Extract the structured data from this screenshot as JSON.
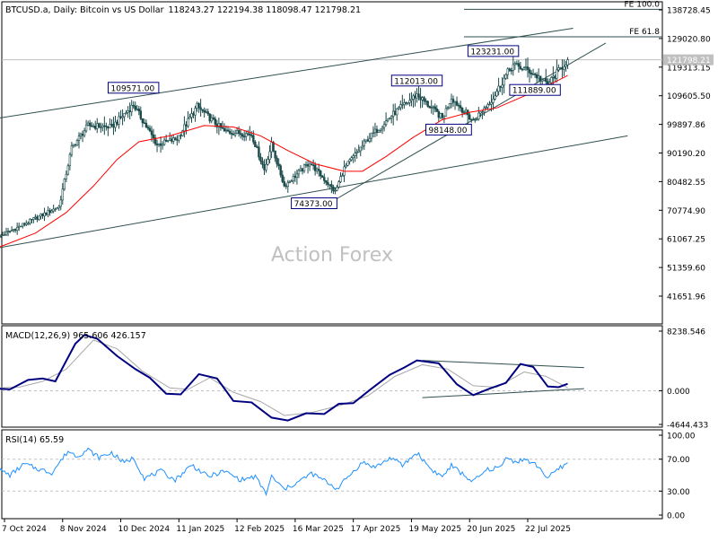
{
  "header": {
    "symbol": "BTCUSD.a, Daily:  Bitcoin vs US Dollar",
    "ohlc": "118243.27 122194.38 118098.47 121798.21"
  },
  "watermark": "Action Forex",
  "colors": {
    "candle": "#1a4a4a",
    "sma": "#ff0000",
    "macd": "#000080",
    "signal": "#a8a8a8",
    "rsi": "#1e90ff",
    "lines": "#2f4f4f",
    "grid": "#c0c0c0"
  },
  "chart_data": [
    {
      "type": "candlestick",
      "title": "BTCUSD.a, Daily:  Bitcoin vs US Dollar",
      "y_ticks": [
        "138728.45",
        "129020.80",
        "119313.15",
        "109605.50",
        "99897.86",
        "90190.20",
        "80482.55",
        "70774.90",
        "61067.25",
        "51359.60",
        "41651.96"
      ],
      "ylim": [
        35000,
        140000
      ],
      "x_ticks": [
        "7 Oct 2024",
        "8 Nov 2024",
        "10 Dec 2024",
        "11 Jan 2025",
        "12 Feb 2025",
        "16 Mar 2025",
        "17 Apr 2025",
        "19 May 2025",
        "20 Jun 2025",
        "22 Jul 2025"
      ],
      "last_price": "121798.21",
      "fibonacci": [
        {
          "label": "FE 100.0",
          "level": 138900
        },
        {
          "label": "FE 61.8",
          "level": 129600
        }
      ],
      "annotations": [
        {
          "label": "109571.00",
          "date": "2024-12-17",
          "price": 109571
        },
        {
          "label": "74373.00",
          "date": "2025-04-07",
          "price": 74373
        },
        {
          "label": "112013.00",
          "date": "2025-05-22",
          "price": 112013
        },
        {
          "label": "98148.00",
          "date": "2025-06-22",
          "price": 98148
        },
        {
          "label": "123231.00",
          "date": "2025-07-14",
          "price": 123231
        },
        {
          "label": "111889.00",
          "date": "2025-08-02",
          "price": 111889
        }
      ],
      "anchors": [
        {
          "date": "2024-10-03",
          "price": 61500
        },
        {
          "date": "2024-11-06",
          "price": 72000
        },
        {
          "date": "2024-11-13",
          "price": 92000
        },
        {
          "date": "2024-11-22",
          "price": 99500
        },
        {
          "date": "2024-12-05",
          "price": 99000
        },
        {
          "date": "2024-12-17",
          "price": 106500
        },
        {
          "date": "2024-12-30",
          "price": 93000
        },
        {
          "date": "2025-01-10",
          "price": 95000
        },
        {
          "date": "2025-01-21",
          "price": 106000
        },
        {
          "date": "2025-02-05",
          "price": 97500
        },
        {
          "date": "2025-02-20",
          "price": 96500
        },
        {
          "date": "2025-02-27",
          "price": 84500
        },
        {
          "date": "2025-03-03",
          "price": 93000
        },
        {
          "date": "2025-03-10",
          "price": 79000
        },
        {
          "date": "2025-03-24",
          "price": 87000
        },
        {
          "date": "2025-04-07",
          "price": 77000
        },
        {
          "date": "2025-04-12",
          "price": 85000
        },
        {
          "date": "2025-04-25",
          "price": 95000
        },
        {
          "date": "2025-05-10",
          "price": 104000
        },
        {
          "date": "2025-05-22",
          "price": 110000
        },
        {
          "date": "2025-06-05",
          "price": 102000
        },
        {
          "date": "2025-06-10",
          "price": 109000
        },
        {
          "date": "2025-06-22",
          "price": 101000
        },
        {
          "date": "2025-07-03",
          "price": 109000
        },
        {
          "date": "2025-07-11",
          "price": 117500
        },
        {
          "date": "2025-07-14",
          "price": 120000
        },
        {
          "date": "2025-07-23",
          "price": 118000
        },
        {
          "date": "2025-08-02",
          "price": 113500
        },
        {
          "date": "2025-08-10",
          "price": 119500
        },
        {
          "date": "2025-08-13",
          "price": 121798
        }
      ],
      "sma": [
        {
          "date": "2024-10-03",
          "price": 58000
        },
        {
          "date": "2024-10-24",
          "price": 63000
        },
        {
          "date": "2024-11-10",
          "price": 70000
        },
        {
          "date": "2024-11-25",
          "price": 79000
        },
        {
          "date": "2024-12-08",
          "price": 88000
        },
        {
          "date": "2024-12-20",
          "price": 94000
        },
        {
          "date": "2025-01-06",
          "price": 96000
        },
        {
          "date": "2025-01-25",
          "price": 99500
        },
        {
          "date": "2025-02-10",
          "price": 99000
        },
        {
          "date": "2025-02-25",
          "price": 96000
        },
        {
          "date": "2025-03-12",
          "price": 91000
        },
        {
          "date": "2025-03-27",
          "price": 86500
        },
        {
          "date": "2025-04-12",
          "price": 84000
        },
        {
          "date": "2025-04-22",
          "price": 84000
        },
        {
          "date": "2025-05-05",
          "price": 89000
        },
        {
          "date": "2025-05-20",
          "price": 95500
        },
        {
          "date": "2025-06-05",
          "price": 101500
        },
        {
          "date": "2025-06-20",
          "price": 104000
        },
        {
          "date": "2025-07-05",
          "price": 105500
        },
        {
          "date": "2025-07-20",
          "price": 109500
        },
        {
          "date": "2025-08-02",
          "price": 113000
        },
        {
          "date": "2025-08-13",
          "price": 116500
        }
      ],
      "trendlines": [
        {
          "from": {
            "date": "2024-09-15",
            "price": 100200
          },
          "to": {
            "date": "2025-08-16",
            "price": 132500
          }
        },
        {
          "from": {
            "date": "2024-09-15",
            "price": 56000
          },
          "to": {
            "date": "2025-09-15",
            "price": 96000
          }
        },
        {
          "from": {
            "date": "2025-04-07",
            "price": 74373
          },
          "to": {
            "date": "2025-09-03",
            "price": 127500
          }
        }
      ]
    },
    {
      "type": "line",
      "title": "MACD(12,26,9) 965.606 426.157",
      "y_ticks": [
        "8238.546",
        "0.000",
        "-4644.433"
      ],
      "ylim": [
        -4800,
        9000
      ],
      "series": [
        {
          "name": "MACD",
          "points": [
            {
              "date": "2024-10-03",
              "value": 300
            },
            {
              "date": "2024-10-10",
              "value": 200
            },
            {
              "date": "2024-10-20",
              "value": 1500
            },
            {
              "date": "2024-10-28",
              "value": 1700
            },
            {
              "date": "2024-11-04",
              "value": 1300
            },
            {
              "date": "2024-11-15",
              "value": 6500
            },
            {
              "date": "2024-11-20",
              "value": 7700
            },
            {
              "date": "2024-11-27",
              "value": 7200
            },
            {
              "date": "2024-12-08",
              "value": 4800
            },
            {
              "date": "2024-12-18",
              "value": 3000
            },
            {
              "date": "2024-12-26",
              "value": 1800
            },
            {
              "date": "2025-01-04",
              "value": -400
            },
            {
              "date": "2025-01-12",
              "value": -500
            },
            {
              "date": "2025-01-22",
              "value": 2300
            },
            {
              "date": "2025-02-01",
              "value": 1700
            },
            {
              "date": "2025-02-10",
              "value": -1400
            },
            {
              "date": "2025-02-20",
              "value": -1600
            },
            {
              "date": "2025-03-03",
              "value": -3700
            },
            {
              "date": "2025-03-12",
              "value": -4100
            },
            {
              "date": "2025-03-22",
              "value": -3100
            },
            {
              "date": "2025-04-01",
              "value": -3200
            },
            {
              "date": "2025-04-09",
              "value": -1800
            },
            {
              "date": "2025-04-17",
              "value": -1700
            },
            {
              "date": "2025-04-26",
              "value": 100
            },
            {
              "date": "2025-05-07",
              "value": 2200
            },
            {
              "date": "2025-05-15",
              "value": 3200
            },
            {
              "date": "2025-05-22",
              "value": 4200
            },
            {
              "date": "2025-06-03",
              "value": 3800
            },
            {
              "date": "2025-06-13",
              "value": 900
            },
            {
              "date": "2025-06-22",
              "value": -600
            },
            {
              "date": "2025-07-01",
              "value": 300
            },
            {
              "date": "2025-07-10",
              "value": 1100
            },
            {
              "date": "2025-07-18",
              "value": 3700
            },
            {
              "date": "2025-07-25",
              "value": 3300
            },
            {
              "date": "2025-08-02",
              "value": 600
            },
            {
              "date": "2025-08-08",
              "value": 500
            },
            {
              "date": "2025-08-13",
              "value": 966
            }
          ]
        },
        {
          "name": "Signal",
          "points": [
            {
              "date": "2024-10-03",
              "value": 400
            },
            {
              "date": "2024-10-15",
              "value": 500
            },
            {
              "date": "2024-10-28",
              "value": 1300
            },
            {
              "date": "2024-11-10",
              "value": 3000
            },
            {
              "date": "2024-11-25",
              "value": 7000
            },
            {
              "date": "2024-12-08",
              "value": 5800
            },
            {
              "date": "2024-12-22",
              "value": 2700
            },
            {
              "date": "2025-01-06",
              "value": 400
            },
            {
              "date": "2025-01-16",
              "value": 200
            },
            {
              "date": "2025-01-28",
              "value": 1800
            },
            {
              "date": "2025-02-10",
              "value": -200
            },
            {
              "date": "2025-02-25",
              "value": -1500
            },
            {
              "date": "2025-03-10",
              "value": -3400
            },
            {
              "date": "2025-03-25",
              "value": -3000
            },
            {
              "date": "2025-04-10",
              "value": -2000
            },
            {
              "date": "2025-04-25",
              "value": -700
            },
            {
              "date": "2025-05-10",
              "value": 2000
            },
            {
              "date": "2025-05-25",
              "value": 3600
            },
            {
              "date": "2025-06-08",
              "value": 3000
            },
            {
              "date": "2025-06-22",
              "value": 700
            },
            {
              "date": "2025-07-05",
              "value": 500
            },
            {
              "date": "2025-07-20",
              "value": 2600
            },
            {
              "date": "2025-08-01",
              "value": 2000
            },
            {
              "date": "2025-08-13",
              "value": 426
            }
          ]
        }
      ],
      "trendlines": [
        {
          "from": {
            "date": "2025-05-25",
            "value": 4200
          },
          "to": {
            "date": "2025-08-22",
            "value": 3200
          }
        },
        {
          "from": {
            "date": "2025-05-25",
            "value": -950
          },
          "to": {
            "date": "2025-08-22",
            "value": 300
          }
        }
      ]
    },
    {
      "type": "line",
      "title": "RSI(14) 65.59",
      "y_ticks": [
        "100.00",
        "70.00",
        "30.00",
        "0.00"
      ],
      "ylim": [
        0,
        100
      ],
      "levels": [
        70,
        30
      ],
      "series": [
        {
          "name": "RSI",
          "points": [
            {
              "date": "2024-10-03",
              "value": 58
            },
            {
              "date": "2024-10-10",
              "value": 50
            },
            {
              "date": "2024-10-18",
              "value": 64
            },
            {
              "date": "2024-10-25",
              "value": 58
            },
            {
              "date": "2024-11-02",
              "value": 53
            },
            {
              "date": "2024-11-11",
              "value": 80
            },
            {
              "date": "2024-11-16",
              "value": 74
            },
            {
              "date": "2024-11-22",
              "value": 82
            },
            {
              "date": "2024-11-28",
              "value": 72
            },
            {
              "date": "2024-12-05",
              "value": 78
            },
            {
              "date": "2024-12-12",
              "value": 65
            },
            {
              "date": "2024-12-17",
              "value": 72
            },
            {
              "date": "2024-12-23",
              "value": 46
            },
            {
              "date": "2025-01-01",
              "value": 55
            },
            {
              "date": "2025-01-09",
              "value": 44
            },
            {
              "date": "2025-01-18",
              "value": 63
            },
            {
              "date": "2025-01-27",
              "value": 48
            },
            {
              "date": "2025-02-05",
              "value": 55
            },
            {
              "date": "2025-02-14",
              "value": 44
            },
            {
              "date": "2025-02-22",
              "value": 48
            },
            {
              "date": "2025-02-28",
              "value": 27
            },
            {
              "date": "2025-03-03",
              "value": 48
            },
            {
              "date": "2025-03-10",
              "value": 32
            },
            {
              "date": "2025-03-18",
              "value": 42
            },
            {
              "date": "2025-03-25",
              "value": 52
            },
            {
              "date": "2025-04-02",
              "value": 42
            },
            {
              "date": "2025-04-08",
              "value": 33
            },
            {
              "date": "2025-04-15",
              "value": 50
            },
            {
              "date": "2025-04-22",
              "value": 66
            },
            {
              "date": "2025-04-29",
              "value": 60
            },
            {
              "date": "2025-05-08",
              "value": 72
            },
            {
              "date": "2025-05-14",
              "value": 62
            },
            {
              "date": "2025-05-22",
              "value": 78
            },
            {
              "date": "2025-05-30",
              "value": 57
            },
            {
              "date": "2025-06-05",
              "value": 48
            },
            {
              "date": "2025-06-10",
              "value": 62
            },
            {
              "date": "2025-06-18",
              "value": 48
            },
            {
              "date": "2025-06-22",
              "value": 42
            },
            {
              "date": "2025-06-30",
              "value": 57
            },
            {
              "date": "2025-07-07",
              "value": 60
            },
            {
              "date": "2025-07-11",
              "value": 74
            },
            {
              "date": "2025-07-15",
              "value": 66
            },
            {
              "date": "2025-07-20",
              "value": 70
            },
            {
              "date": "2025-07-28",
              "value": 61
            },
            {
              "date": "2025-08-02",
              "value": 46
            },
            {
              "date": "2025-08-08",
              "value": 58
            },
            {
              "date": "2025-08-13",
              "value": 65.59
            }
          ]
        }
      ]
    }
  ]
}
